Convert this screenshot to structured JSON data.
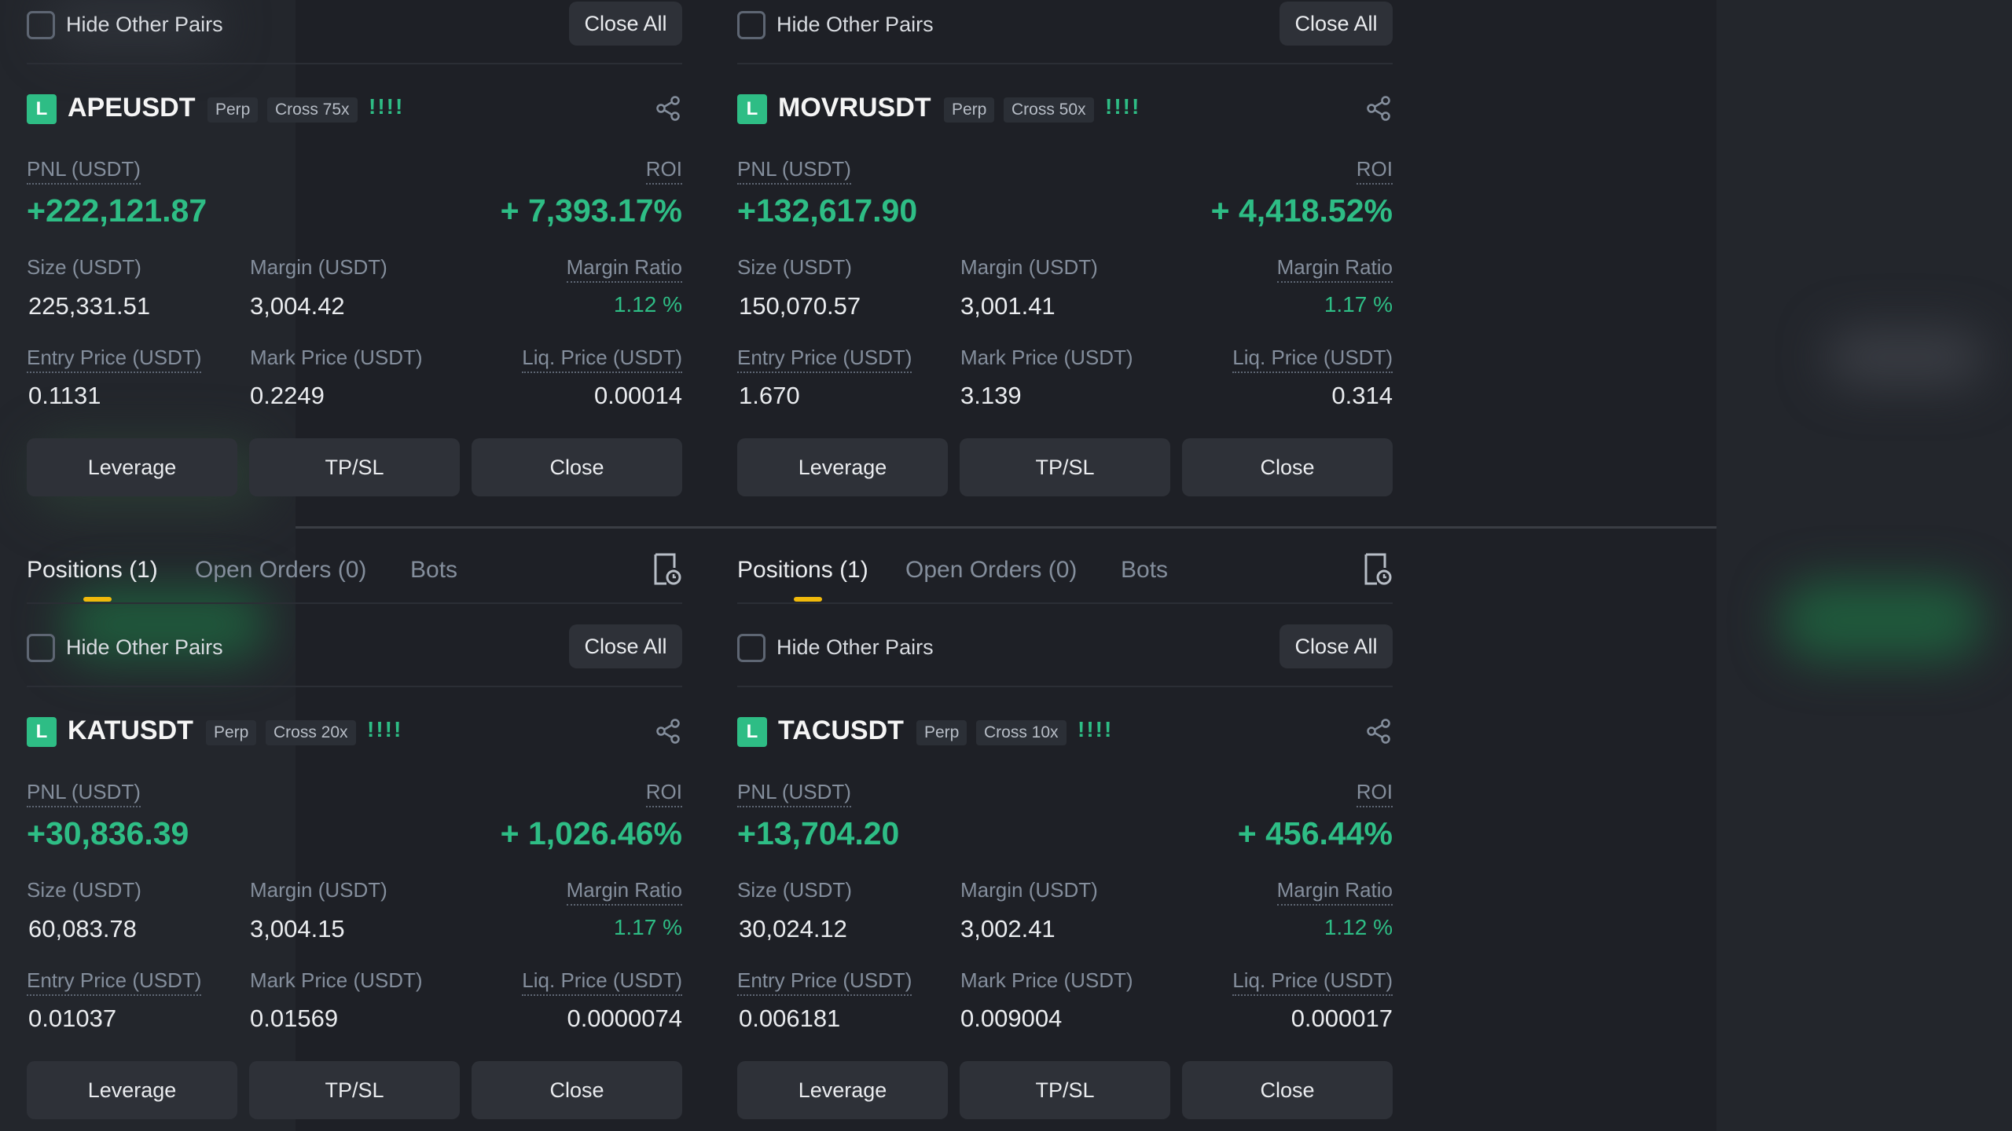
{
  "common": {
    "hide_other_pairs": "Hide Other Pairs",
    "close_all": "Close All",
    "positions_tab": "Positions (1)",
    "open_orders_tab": "Open Orders (0)",
    "bots_tab": "Bots",
    "pnl_label": "PNL (USDT)",
    "roi_label": "ROI",
    "size_label": "Size (USDT)",
    "margin_label": "Margin (USDT)",
    "margin_ratio_label": "Margin Ratio",
    "entry_label": "Entry Price (USDT)",
    "mark_label": "Mark Price (USDT)",
    "liq_label": "Liq. Price (USDT)",
    "leverage_btn": "Leverage",
    "tpsl_btn": "TP/SL",
    "close_btn": "Close",
    "side_badge": "L",
    "perp_tag": "Perp",
    "signal_bars": "!!!!"
  },
  "positions": [
    {
      "symbol": "APEUSDT",
      "cross": "Cross 75x",
      "pnl": "+222,121.87",
      "roi": "+ 7,393.17%",
      "size": "225,331.51",
      "margin": "3,004.42",
      "margin_ratio": "1.12 %",
      "entry": "0.1131",
      "mark": "0.2249",
      "liq": "0.00014"
    },
    {
      "symbol": "MOVRUSDT",
      "cross": "Cross 50x",
      "pnl": "+132,617.90",
      "roi": "+ 4,418.52%",
      "size": "150,070.57",
      "margin": "3,001.41",
      "margin_ratio": "1.17 %",
      "entry": "1.670",
      "mark": "3.139",
      "liq": "0.314"
    },
    {
      "symbol": "KATUSDT",
      "cross": "Cross 20x",
      "pnl": "+30,836.39",
      "roi": "+ 1,026.46%",
      "size": "60,083.78",
      "margin": "3,004.15",
      "margin_ratio": "1.17 %",
      "entry": "0.01037",
      "mark": "0.01569",
      "liq": "0.0000074"
    },
    {
      "symbol": "TACUSDT",
      "cross": "Cross 10x",
      "pnl": "+13,704.20",
      "roi": "+ 456.44%",
      "size": "30,024.12",
      "margin": "3,002.41",
      "margin_ratio": "1.12 %",
      "entry": "0.006181",
      "mark": "0.009004",
      "liq": "0.000017"
    }
  ],
  "colors": {
    "positive": "#2ebd85",
    "accent": "#f0b90b",
    "background": "#1e2026"
  }
}
